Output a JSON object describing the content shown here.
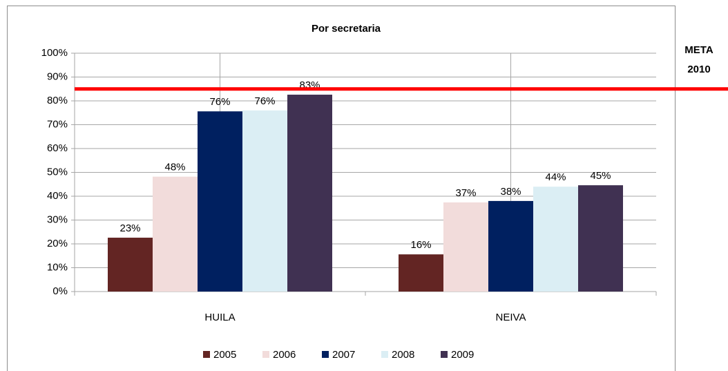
{
  "chart_data": {
    "type": "bar",
    "title": "Por secretaria",
    "categories": [
      "HUILA",
      "NEIVA"
    ],
    "series": [
      {
        "name": "2005",
        "color": "#632523",
        "values": [
          22.6,
          15.6
        ],
        "value_labels": [
          "23%",
          "16%"
        ]
      },
      {
        "name": "2006",
        "color": "#f2dcdb",
        "values": [
          48.2,
          37.4
        ],
        "value_labels": [
          "48%",
          "37%"
        ]
      },
      {
        "name": "2007",
        "color": "#002060",
        "values": [
          75.6,
          38.0
        ],
        "value_labels": [
          "76%",
          "38%"
        ]
      },
      {
        "name": "2008",
        "color": "#dbeef4",
        "values": [
          76.0,
          44.0
        ],
        "value_labels": [
          "76%",
          "44%"
        ]
      },
      {
        "name": "2009",
        "color": "#403152",
        "values": [
          82.6,
          44.6
        ],
        "value_labels": [
          "83%",
          "45%"
        ]
      }
    ],
    "ylim": [
      0,
      100
    ],
    "yticks": [
      {
        "value": 0,
        "label": "0%"
      },
      {
        "value": 10,
        "label": "10%"
      },
      {
        "value": 20,
        "label": "20%"
      },
      {
        "value": 30,
        "label": "30%"
      },
      {
        "value": 40,
        "label": "40%"
      },
      {
        "value": 50,
        "label": "50%"
      },
      {
        "value": 60,
        "label": "60%"
      },
      {
        "value": 70,
        "label": "70%"
      },
      {
        "value": 80,
        "label": "80%"
      },
      {
        "value": 90,
        "label": "90%"
      },
      {
        "value": 100,
        "label": "100%"
      }
    ],
    "grid": true,
    "legend": "bottom",
    "target": {
      "value": 85,
      "color": "#ff0000",
      "label": [
        "META",
        "2010"
      ]
    }
  }
}
